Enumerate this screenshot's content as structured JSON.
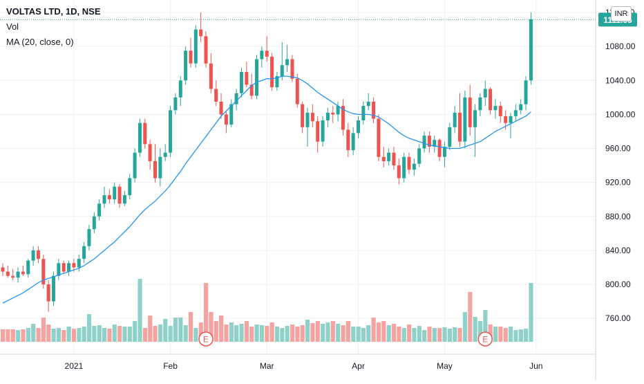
{
  "legend": {
    "symbol": "VOLTAS LTD, 1D, NSE",
    "volume": "Vol",
    "ma": "MA (20, close, 0)"
  },
  "currency": "INR",
  "colors": {
    "up": "#26a69a",
    "down": "#ef5350",
    "vol_up": "#8fd1c8",
    "vol_down": "#f5a3a1",
    "ma": "#2196f3",
    "grid": "#edf0f3",
    "axis_text": "#131722",
    "badge": "#26a69a"
  },
  "chart_data": {
    "type": "candlestick",
    "title": "VOLTAS LTD, 1D, NSE",
    "ylim": [
      730,
      1120
    ],
    "y_ticks": [
      760,
      800,
      840,
      880,
      920,
      960,
      1000,
      1040,
      1080,
      1120
    ],
    "y_tick_labels": [
      "760.00",
      "800.00",
      "840.00",
      "880.00",
      "920.00",
      "960.00",
      "1000.00",
      "1040.00",
      "1080.00",
      "1120.00"
    ],
    "x_tick_labels": [
      {
        "label": "2021",
        "index": 14
      },
      {
        "label": "Feb",
        "index": 33
      },
      {
        "label": "Mar",
        "index": 52
      },
      {
        "label": "Apr",
        "index": 70
      },
      {
        "label": "May",
        "index": 87
      },
      {
        "label": "Jun",
        "index": 105
      }
    ],
    "last_price": 1111.55,
    "last_price_label": "1111.55",
    "ohlc": [
      [
        820,
        825,
        810,
        815
      ],
      [
        815,
        822,
        808,
        810
      ],
      [
        810,
        818,
        805,
        808
      ],
      [
        808,
        820,
        802,
        815
      ],
      [
        815,
        822,
        810,
        812
      ],
      [
        812,
        830,
        808,
        828
      ],
      [
        828,
        845,
        822,
        840
      ],
      [
        840,
        845,
        825,
        830
      ],
      [
        830,
        835,
        795,
        800
      ],
      [
        800,
        805,
        768,
        780
      ],
      [
        780,
        815,
        775,
        810
      ],
      [
        810,
        830,
        805,
        825
      ],
      [
        825,
        828,
        812,
        815
      ],
      [
        815,
        828,
        810,
        825
      ],
      [
        825,
        830,
        815,
        820
      ],
      [
        820,
        835,
        815,
        830
      ],
      [
        830,
        850,
        825,
        845
      ],
      [
        845,
        870,
        840,
        865
      ],
      [
        865,
        885,
        860,
        880
      ],
      [
        880,
        900,
        875,
        895
      ],
      [
        895,
        915,
        890,
        905
      ],
      [
        905,
        912,
        895,
        900
      ],
      [
        900,
        920,
        895,
        915
      ],
      [
        915,
        918,
        890,
        895
      ],
      [
        895,
        910,
        892,
        905
      ],
      [
        905,
        930,
        900,
        925
      ],
      [
        925,
        960,
        920,
        955
      ],
      [
        955,
        995,
        950,
        990
      ],
      [
        990,
        995,
        960,
        965
      ],
      [
        965,
        970,
        935,
        945
      ],
      [
        945,
        965,
        920,
        925
      ],
      [
        925,
        960,
        915,
        950
      ],
      [
        950,
        965,
        945,
        955
      ],
      [
        955,
        1010,
        950,
        1005
      ],
      [
        1005,
        1025,
        1000,
        1020
      ],
      [
        1020,
        1045,
        1010,
        1040
      ],
      [
        1040,
        1080,
        1035,
        1075
      ],
      [
        1075,
        1090,
        1055,
        1060
      ],
      [
        1060,
        1105,
        1055,
        1100
      ],
      [
        1100,
        1120,
        1085,
        1092
      ],
      [
        1092,
        1098,
        1055,
        1060
      ],
      [
        1060,
        1072,
        1025,
        1030
      ],
      [
        1030,
        1040,
        1010,
        1015
      ],
      [
        1015,
        1025,
        995,
        1000
      ],
      [
        1000,
        1005,
        978,
        988
      ],
      [
        988,
        1018,
        985,
        1012
      ],
      [
        1012,
        1030,
        1005,
        1025
      ],
      [
        1025,
        1055,
        1020,
        1050
      ],
      [
        1050,
        1062,
        1032,
        1035
      ],
      [
        1035,
        1048,
        1018,
        1022
      ],
      [
        1022,
        1070,
        1018,
        1065
      ],
      [
        1065,
        1080,
        1055,
        1075
      ],
      [
        1075,
        1092,
        1062,
        1068
      ],
      [
        1068,
        1072,
        1028,
        1032
      ],
      [
        1032,
        1050,
        1028,
        1045
      ],
      [
        1045,
        1085,
        1040,
        1058
      ],
      [
        1058,
        1082,
        1050,
        1065
      ],
      [
        1065,
        1070,
        1038,
        1042
      ],
      [
        1042,
        1048,
        1008,
        1012
      ],
      [
        1012,
        1015,
        978,
        985
      ],
      [
        985,
        1008,
        962,
        1002
      ],
      [
        1002,
        1012,
        985,
        992
      ],
      [
        992,
        998,
        955,
        968
      ],
      [
        968,
        998,
        962,
        993
      ],
      [
        993,
        1008,
        985,
        1002
      ],
      [
        1002,
        1010,
        990,
        1000
      ],
      [
        1000,
        1015,
        992,
        1010
      ],
      [
        1010,
        1018,
        975,
        982
      ],
      [
        982,
        990,
        950,
        958
      ],
      [
        958,
        985,
        952,
        978
      ],
      [
        978,
        998,
        972,
        993
      ],
      [
        993,
        1015,
        988,
        1010
      ],
      [
        1010,
        1025,
        1005,
        1015
      ],
      [
        1015,
        1020,
        990,
        995
      ],
      [
        995,
        1000,
        945,
        950
      ],
      [
        950,
        962,
        938,
        945
      ],
      [
        945,
        960,
        940,
        955
      ],
      [
        955,
        962,
        935,
        940
      ],
      [
        940,
        948,
        918,
        925
      ],
      [
        925,
        955,
        920,
        950
      ],
      [
        950,
        955,
        930,
        935
      ],
      [
        935,
        948,
        928,
        942
      ],
      [
        942,
        965,
        938,
        960
      ],
      [
        960,
        980,
        955,
        975
      ],
      [
        975,
        980,
        955,
        962
      ],
      [
        962,
        975,
        955,
        970
      ],
      [
        970,
        972,
        945,
        950
      ],
      [
        950,
        968,
        938,
        962
      ],
      [
        962,
        990,
        958,
        985
      ],
      [
        985,
        1010,
        978,
        1002
      ],
      [
        1002,
        1025,
        962,
        968
      ],
      [
        968,
        1028,
        960,
        1020
      ],
      [
        1020,
        1035,
        975,
        985
      ],
      [
        985,
        1012,
        950,
        1005
      ],
      [
        1005,
        1025,
        998,
        1020
      ],
      [
        1020,
        1040,
        1010,
        1030
      ],
      [
        1030,
        1032,
        1000,
        1005
      ],
      [
        1005,
        1018,
        995,
        1010
      ],
      [
        1010,
        1015,
        990,
        998
      ],
      [
        998,
        1005,
        982,
        990
      ],
      [
        990,
        1002,
        972,
        998
      ],
      [
        998,
        1012,
        992,
        1005
      ],
      [
        1005,
        1018,
        1000,
        1012
      ],
      [
        1012,
        1045,
        1005,
        1040
      ],
      [
        1040,
        1120,
        1035,
        1112
      ]
    ],
    "volume_scale": [
      0,
      1
    ],
    "volume": [
      0.18,
      0.18,
      0.18,
      0.17,
      0.18,
      0.2,
      0.26,
      0.2,
      0.35,
      0.25,
      0.19,
      0.2,
      0.17,
      0.22,
      0.19,
      0.2,
      0.22,
      0.4,
      0.23,
      0.24,
      0.2,
      0.19,
      0.25,
      0.23,
      0.22,
      0.22,
      0.3,
      0.91,
      0.2,
      0.38,
      0.23,
      0.25,
      0.33,
      0.23,
      0.35,
      0.35,
      0.24,
      0.43,
      0.2,
      0.28,
      0.85,
      0.43,
      0.3,
      0.38,
      0.25,
      0.28,
      0.24,
      0.26,
      0.3,
      0.22,
      0.25,
      0.24,
      0.23,
      0.28,
      0.22,
      0.2,
      0.23,
      0.25,
      0.22,
      0.24,
      0.32,
      0.27,
      0.3,
      0.26,
      0.28,
      0.3,
      0.26,
      0.24,
      0.3,
      0.22,
      0.22,
      0.2,
      0.24,
      0.35,
      0.28,
      0.3,
      0.24,
      0.26,
      0.22,
      0.2,
      0.25,
      0.2,
      0.23,
      0.17,
      0.22,
      0.2,
      0.2,
      0.21,
      0.19,
      0.21,
      0.2,
      0.43,
      0.72,
      0.36,
      0.3,
      0.46,
      0.25,
      0.22,
      0.22,
      0.2,
      0.22,
      0.17,
      0.18,
      0.19,
      0.85
    ],
    "ma": [
      778,
      781,
      784,
      787,
      790,
      794,
      798,
      802,
      805,
      807,
      809,
      811,
      813,
      815,
      817,
      819,
      822,
      826,
      830,
      835,
      840,
      845,
      850,
      856,
      862,
      868,
      875,
      882,
      888,
      893,
      898,
      904,
      910,
      917,
      925,
      933,
      942,
      950,
      958,
      966,
      974,
      982,
      990,
      998,
      1004,
      1010,
      1016,
      1022,
      1028,
      1034,
      1038,
      1040,
      1042,
      1042,
      1043,
      1045,
      1045,
      1044,
      1043,
      1040,
      1036,
      1031,
      1026,
      1022,
      1018,
      1014,
      1010,
      1006,
      1003,
      1001,
      1000,
      1000,
      1000,
      999,
      997,
      993,
      989,
      984,
      979,
      975,
      972,
      970,
      968,
      966,
      964,
      963,
      962,
      961,
      960,
      960,
      960,
      962,
      964,
      966,
      968,
      972,
      976,
      980,
      983,
      986,
      989,
      992,
      995,
      998,
      1003
    ],
    "earnings": [
      {
        "index": 40,
        "label": "E"
      },
      {
        "index": 95,
        "label": "E"
      }
    ]
  }
}
